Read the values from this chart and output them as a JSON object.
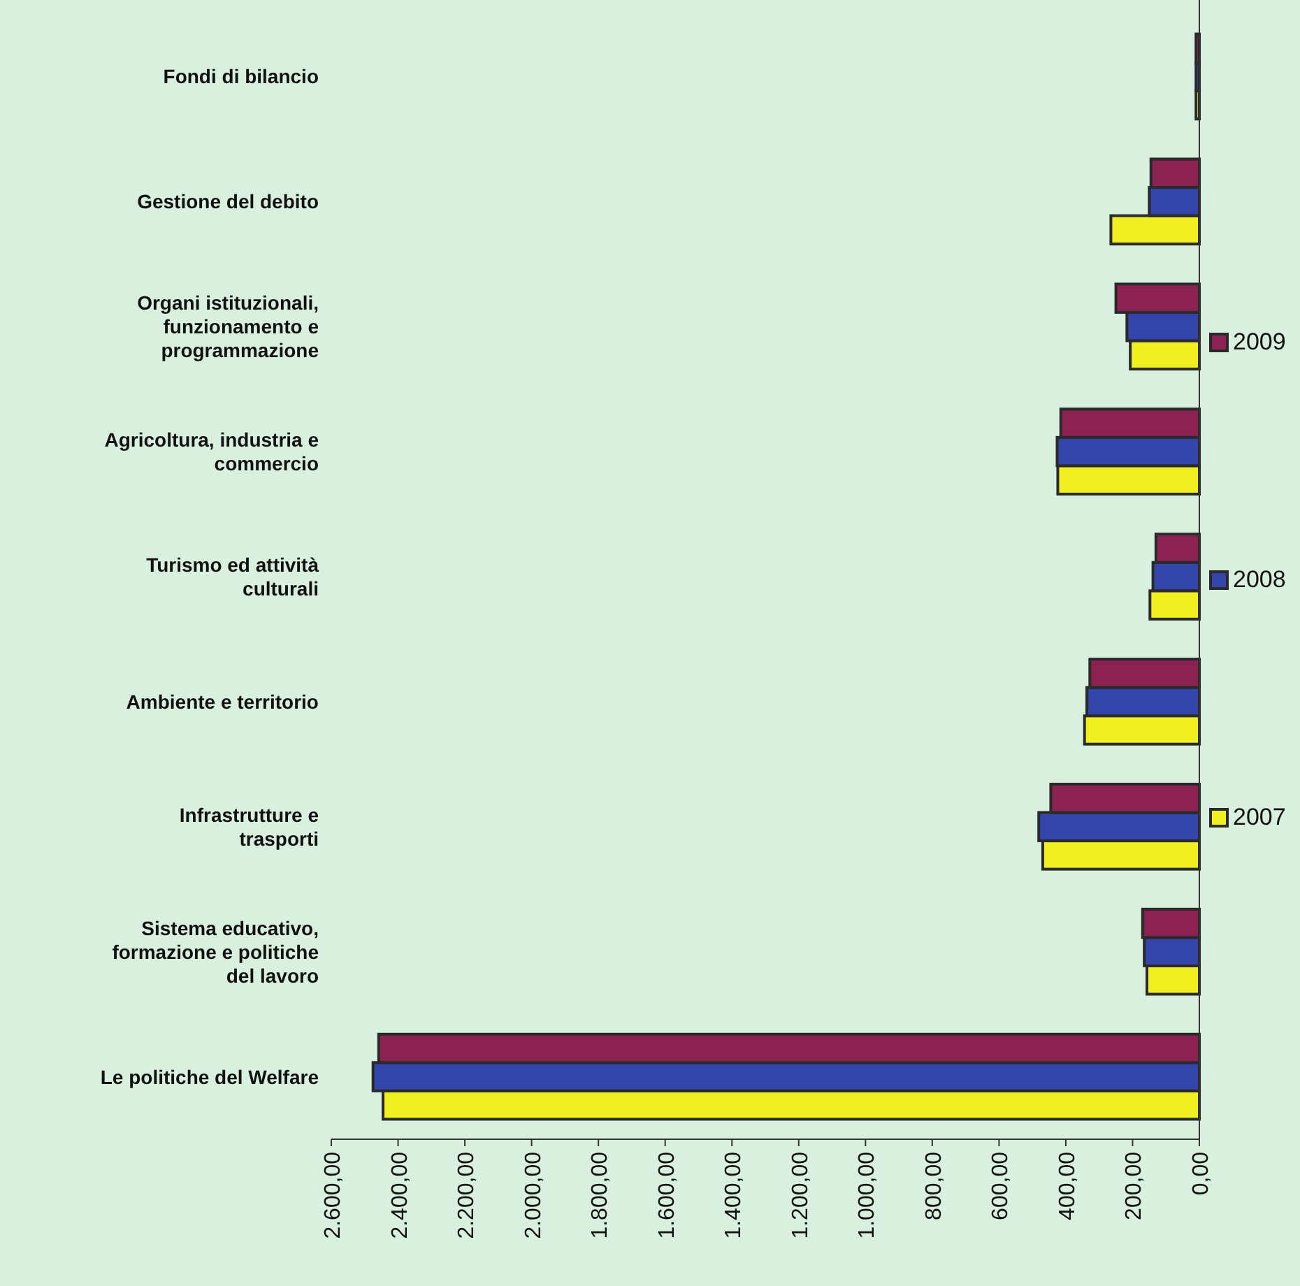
{
  "chart_data": {
    "type": "bar",
    "orientation": "horizontal",
    "categories": [
      "Fondi di bilancio",
      "Gestione del debito",
      "Organi istituzionali, funzionamento e programmazione",
      "Agricoltura, industria e commercio",
      "Turismo ed attività culturali",
      "Ambiente e territorio",
      "Infrastrutture e trasporti",
      "Sistema educativo, formazione e politiche del lavoro",
      "Le politiche del Welfare"
    ],
    "series": [
      {
        "name": "2007",
        "color": "#f0f020",
        "values": [
          10,
          265,
          207,
          424,
          148,
          344,
          469,
          157,
          2445
        ]
      },
      {
        "name": "2008",
        "color": "#3344aa",
        "values": [
          10,
          150,
          217,
          426,
          139,
          337,
          481,
          165,
          2475
        ]
      },
      {
        "name": "2009",
        "color": "#8b2252",
        "values": [
          10,
          145,
          250,
          415,
          130,
          328,
          445,
          170,
          2458
        ]
      }
    ],
    "xlim": [
      2600,
      0
    ],
    "xticks": [
      {
        "value": 0,
        "label": "0,00"
      },
      {
        "value": 200,
        "label": "200,00"
      },
      {
        "value": 400,
        "label": "400,00"
      },
      {
        "value": 600,
        "label": "600,00"
      },
      {
        "value": 800,
        "label": "800,00"
      },
      {
        "value": 1000,
        "label": "1.000,00"
      },
      {
        "value": 1200,
        "label": "1.200,00"
      },
      {
        "value": 1400,
        "label": "1.400,00"
      },
      {
        "value": 1600,
        "label": "1.600,00"
      },
      {
        "value": 1800,
        "label": "1.800,00"
      },
      {
        "value": 2000,
        "label": "2.000,00"
      },
      {
        "value": 2200,
        "label": "2.200,00"
      },
      {
        "value": 2400,
        "label": "2.400,00"
      },
      {
        "value": 2600,
        "label": "2.600,00"
      }
    ],
    "grid": false,
    "legend": "right"
  }
}
